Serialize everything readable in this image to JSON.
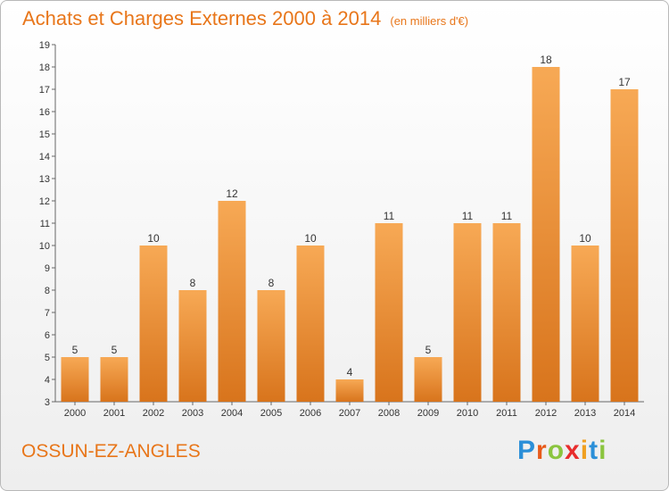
{
  "header": {
    "title": "Achats et Charges Externes 2000 à 2014",
    "subtitle": "(en milliers d'€)"
  },
  "footer": {
    "commune": "OSSUN-EZ-ANGLES",
    "logo": [
      "P",
      "r",
      "o",
      "x",
      "i",
      "t",
      "i"
    ]
  },
  "colors": {
    "accent": "#e8761a",
    "bar_light": "#f7a955",
    "bar_dark": "#d8741c",
    "logo": [
      "#2b8fd8",
      "#e85a1a",
      "#8bc53f",
      "#e82d2d",
      "#f0a020",
      "#2b8fd8",
      "#8bc53f"
    ]
  },
  "chart_data": {
    "type": "bar",
    "categories": [
      "2000",
      "2001",
      "2002",
      "2003",
      "2004",
      "2005",
      "2006",
      "2007",
      "2008",
      "2009",
      "2010",
      "2011",
      "2012",
      "2013",
      "2014"
    ],
    "values": [
      5,
      5,
      10,
      8,
      12,
      8,
      10,
      4,
      11,
      5,
      11,
      11,
      18,
      10,
      17
    ],
    "title": "Achats et Charges Externes 2000 à 2014",
    "subtitle": "(en milliers d'€)",
    "xlabel": "",
    "ylabel": "",
    "ylim": [
      3,
      19
    ],
    "yticks": [
      3,
      4,
      5,
      6,
      7,
      8,
      9,
      10,
      11,
      12,
      13,
      14,
      15,
      16,
      17,
      18,
      19
    ],
    "grid": false,
    "data_labels": true
  }
}
